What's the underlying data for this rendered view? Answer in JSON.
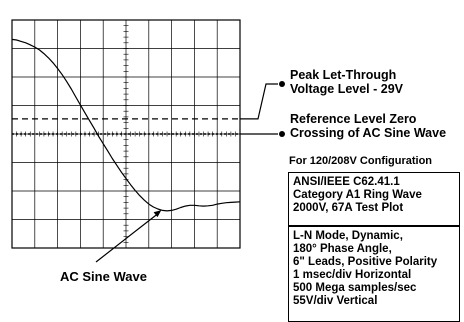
{
  "chart_data": {
    "type": "line",
    "title": "",
    "xlabel": "",
    "ylabel": "",
    "grid": true,
    "grid_divisions": {
      "x": 10,
      "y": 8
    },
    "xlim": [
      0,
      10
    ],
    "ylim": [
      -4,
      4
    ],
    "reference_levels": [
      {
        "name": "peak_let_through",
        "y": 0.53,
        "style": "dashed"
      },
      {
        "name": "zero_crossing",
        "y": 0.0,
        "style": "dotted"
      }
    ],
    "series": [
      {
        "name": "AC Sine Wave",
        "x": [
          0.0,
          0.2,
          0.4,
          0.6,
          0.8,
          1.0,
          1.2,
          1.4,
          1.6,
          1.8,
          2.0,
          2.2,
          2.4,
          2.6,
          2.8,
          3.0,
          3.2,
          3.4,
          3.6,
          3.8,
          4.0,
          4.2,
          4.4,
          4.6,
          4.8,
          5.0,
          5.2,
          5.4,
          5.6,
          5.8,
          6.0,
          6.2,
          6.4,
          6.6,
          6.8,
          7.0,
          7.2,
          7.4,
          7.6,
          7.8,
          8.0,
          8.2,
          8.4,
          8.6,
          8.8,
          9.0,
          9.2,
          9.4,
          9.6,
          9.8,
          10.0
        ],
        "y": [
          3.32,
          3.3,
          3.25,
          3.2,
          3.13,
          3.05,
          2.95,
          2.82,
          2.67,
          2.5,
          2.3,
          2.08,
          1.84,
          1.58,
          1.3,
          1.02,
          0.74,
          0.47,
          0.2,
          -0.08,
          -0.34,
          -0.6,
          -0.86,
          -1.1,
          -1.34,
          -1.56,
          -1.78,
          -1.98,
          -2.16,
          -2.32,
          -2.46,
          -2.56,
          -2.63,
          -2.68,
          -2.7,
          -2.68,
          -2.64,
          -2.58,
          -2.53,
          -2.5,
          -2.5,
          -2.52,
          -2.53,
          -2.52,
          -2.5,
          -2.46,
          -2.43,
          -2.41,
          -2.4,
          -2.39,
          -2.38
        ]
      }
    ]
  },
  "annotations": {
    "peak_label": [
      "Peak Let-Through",
      "Voltage Level - 29V"
    ],
    "ref_label": [
      "Reference Level Zero",
      "Crossing of AC Sine Wave"
    ],
    "sine_label": "AC Sine Wave"
  },
  "config": {
    "title": "For 120/208V Configuration",
    "box1": [
      "ANSI/IEEE C62.41.1",
      "Category A1 Ring Wave",
      "2000V, 67A Test Plot"
    ],
    "box2": [
      "L-N Mode, Dynamic,",
      "180° Phase Angle,",
      "6\" Leads, Positive Polarity",
      "1 msec/div Horizontal",
      "500 Mega samples/sec",
      "55V/div Vertical"
    ]
  }
}
